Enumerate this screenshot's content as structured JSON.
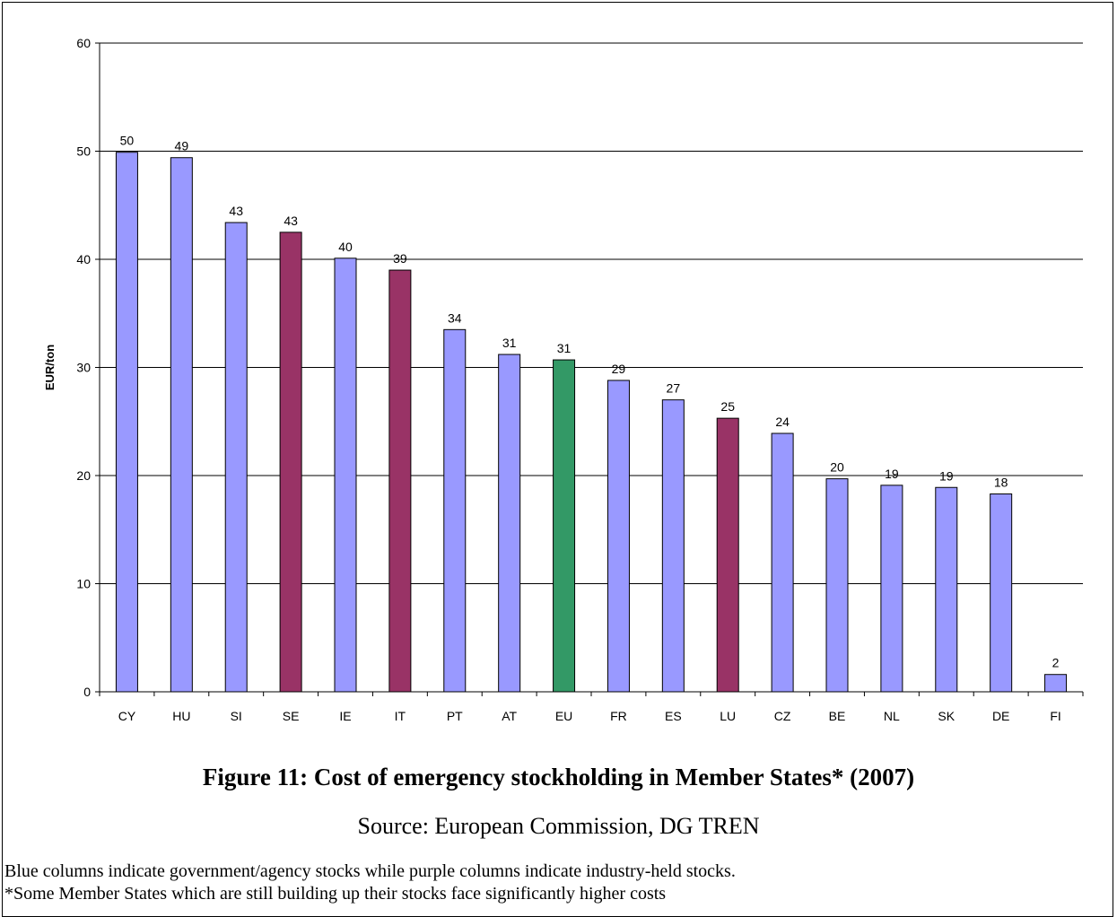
{
  "chart_data": {
    "type": "bar",
    "ylabel": "EUR/ton",
    "ylim": [
      0,
      60
    ],
    "yticks": [
      0,
      10,
      20,
      30,
      40,
      50,
      60
    ],
    "grid": true,
    "categories": [
      "CY",
      "HU",
      "SI",
      "SE",
      "IE",
      "IT",
      "PT",
      "AT",
      "EU",
      "FR",
      "ES",
      "LU",
      "CZ",
      "BE",
      "NL",
      "SK",
      "DE",
      "FI"
    ],
    "values": [
      49.9,
      49.4,
      43.4,
      42.5,
      40.1,
      39.0,
      33.5,
      31.2,
      30.7,
      28.8,
      27.0,
      25.3,
      23.9,
      19.7,
      19.1,
      18.9,
      18.3,
      1.6
    ],
    "data_labels": [
      "50",
      "49",
      "43",
      "43",
      "40",
      "39",
      "34",
      "31",
      "31",
      "29",
      "27",
      "25",
      "24",
      "20",
      "19",
      "19",
      "18",
      "2"
    ],
    "bar_types": [
      "gov",
      "gov",
      "gov",
      "ind",
      "gov",
      "ind",
      "gov",
      "gov",
      "eu",
      "gov",
      "gov",
      "ind",
      "gov",
      "gov",
      "gov",
      "gov",
      "gov",
      "gov"
    ],
    "colors": {
      "gov": "#9999ff",
      "ind": "#993366",
      "eu": "#339966"
    }
  },
  "caption": {
    "title": "Figure 11: Cost of emergency stockholding in Member States* (2007)",
    "source": "Source: European Commission, DG TREN"
  },
  "notes": [
    "Blue columns indicate government/agency stocks while purple columns indicate industry-held stocks.",
    "*Some Member States which are still building up their stocks face significantly higher costs"
  ]
}
